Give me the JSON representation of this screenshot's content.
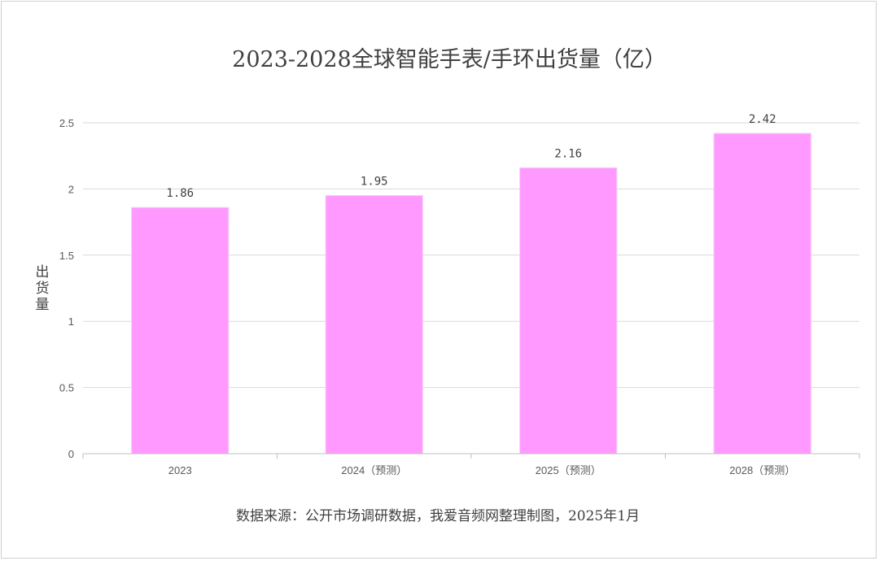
{
  "chart_data": {
    "type": "bar",
    "title": "2023-2028全球智能手表/手环出货量（亿）",
    "xlabel": "",
    "ylabel": "出货量",
    "categories": [
      "2023",
      "2024（预测）",
      "2025（预测）",
      "2028（预测）"
    ],
    "values": [
      1.86,
      1.95,
      2.16,
      2.42
    ],
    "data_labels": [
      "1.86",
      "1.95",
      "2.16",
      "2.42"
    ],
    "ylim": [
      0,
      2.5
    ],
    "yticks": [
      0,
      0.5,
      1,
      1.5,
      2,
      2.5
    ],
    "ytick_labels": [
      "0",
      "0.5",
      "1",
      "1.5",
      "2",
      "2.5"
    ],
    "grid": true,
    "bar_color": "#FF99FF",
    "legend": "none"
  },
  "source_note": "数据来源：公开市场调研数据，我爱音频网整理制图，2025年1月"
}
